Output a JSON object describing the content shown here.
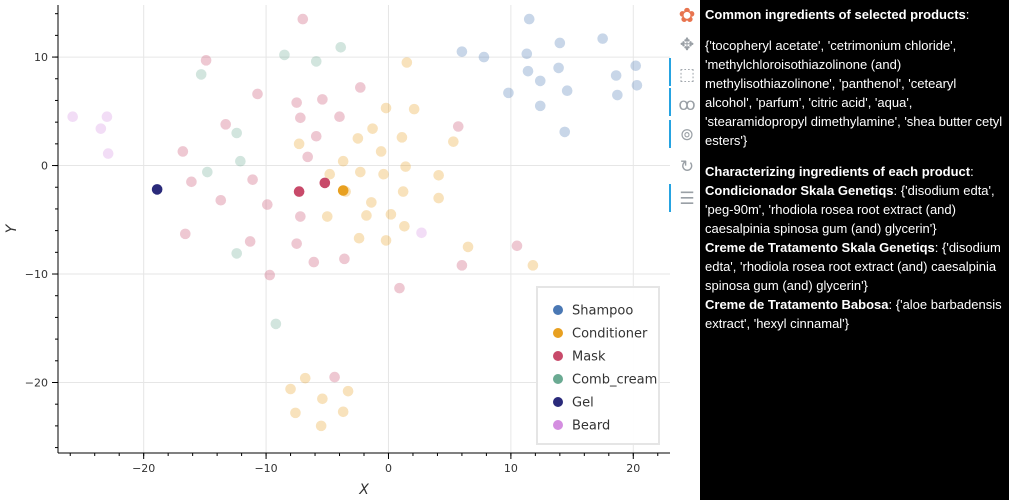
{
  "chart_data": {
    "type": "scatter",
    "title": "",
    "xlabel": "X",
    "ylabel": "Y",
    "xlim": [
      -27,
      23
    ],
    "ylim": [
      -26.5,
      14.8
    ],
    "x_ticks": [
      -20,
      -10,
      0,
      10,
      20
    ],
    "y_ticks": [
      -20,
      -10,
      0,
      10
    ],
    "grid": true,
    "legend_position": "bottom-right",
    "series": [
      {
        "name": "Shampoo",
        "color": "#4a78b4",
        "points": [
          {
            "x": 11.5,
            "y": 13.5
          },
          {
            "x": 17.5,
            "y": 11.7
          },
          {
            "x": 14,
            "y": 11.3
          },
          {
            "x": 6,
            "y": 10.5
          },
          {
            "x": 7.8,
            "y": 10
          },
          {
            "x": 11.3,
            "y": 10.3
          },
          {
            "x": 20.2,
            "y": 9.2
          },
          {
            "x": 11.4,
            "y": 8.7
          },
          {
            "x": 13.9,
            "y": 9
          },
          {
            "x": 18.6,
            "y": 8.3
          },
          {
            "x": 12.4,
            "y": 7.8
          },
          {
            "x": 20.3,
            "y": 7.4
          },
          {
            "x": 9.8,
            "y": 6.7
          },
          {
            "x": 14.6,
            "y": 6.9
          },
          {
            "x": 18.7,
            "y": 6.5
          },
          {
            "x": 12.4,
            "y": 5.5
          },
          {
            "x": 14.4,
            "y": 3.1
          }
        ],
        "highlighted": []
      },
      {
        "name": "Conditioner",
        "color": "#e8a020",
        "points": [
          {
            "x": 1.5,
            "y": 9.5
          },
          {
            "x": -0.2,
            "y": 5.3
          },
          {
            "x": 2.1,
            "y": 5.2
          },
          {
            "x": -1.3,
            "y": 3.4
          },
          {
            "x": 1.1,
            "y": 2.6
          },
          {
            "x": -2.5,
            "y": 2.5
          },
          {
            "x": -7.3,
            "y": 2
          },
          {
            "x": 5.3,
            "y": 2.2
          },
          {
            "x": -0.6,
            "y": 1.3
          },
          {
            "x": -3.7,
            "y": 0.4
          },
          {
            "x": -2.3,
            "y": -0.6
          },
          {
            "x": -4.8,
            "y": -0.8
          },
          {
            "x": 1.4,
            "y": -0.1
          },
          {
            "x": -0.4,
            "y": -0.8
          },
          {
            "x": 4.1,
            "y": -0.9
          },
          {
            "x": -3.5,
            "y": -2.4
          },
          {
            "x": 1.2,
            "y": -2.4
          },
          {
            "x": -1.4,
            "y": -3.4
          },
          {
            "x": 4.1,
            "y": -3
          },
          {
            "x": -5.0,
            "y": -4.7
          },
          {
            "x": -1.8,
            "y": -4.6
          },
          {
            "x": 0.2,
            "y": -4.5
          },
          {
            "x": 1.3,
            "y": -5.6
          },
          {
            "x": -2.4,
            "y": -6.7
          },
          {
            "x": -0.2,
            "y": -6.9
          },
          {
            "x": 6.5,
            "y": -7.5
          },
          {
            "x": 11.8,
            "y": -9.2
          },
          {
            "x": -6.8,
            "y": -19.6
          },
          {
            "x": -8.0,
            "y": -20.6
          },
          {
            "x": -3.3,
            "y": -20.8
          },
          {
            "x": -5.4,
            "y": -21.5
          },
          {
            "x": -7.6,
            "y": -22.8
          },
          {
            "x": -3.7,
            "y": -22.7
          },
          {
            "x": -5.5,
            "y": -24
          },
          {
            "x": -3.7,
            "y": -2.3
          }
        ],
        "highlighted": [
          {
            "x": -3.7,
            "y": -2.3
          }
        ]
      },
      {
        "name": "Mask",
        "color": "#c84a6a",
        "points": [
          {
            "x": -7.0,
            "y": 13.5
          },
          {
            "x": -14.9,
            "y": 9.7
          },
          {
            "x": -2.3,
            "y": 7.2
          },
          {
            "x": -10.7,
            "y": 6.6
          },
          {
            "x": -5.4,
            "y": 6.1
          },
          {
            "x": -7.5,
            "y": 5.8
          },
          {
            "x": -7.2,
            "y": 4.4
          },
          {
            "x": -4.0,
            "y": 4.5
          },
          {
            "x": -13.3,
            "y": 3.8
          },
          {
            "x": 5.7,
            "y": 3.6
          },
          {
            "x": -5.9,
            "y": 2.7
          },
          {
            "x": -16.8,
            "y": 1.3
          },
          {
            "x": -6.6,
            "y": 0.8
          },
          {
            "x": -16.1,
            "y": -1.5
          },
          {
            "x": -11.1,
            "y": -1.3
          },
          {
            "x": -13.7,
            "y": -3.2
          },
          {
            "x": -9.9,
            "y": -3.6
          },
          {
            "x": -7.2,
            "y": -4.7
          },
          {
            "x": -16.6,
            "y": -6.3
          },
          {
            "x": -11.3,
            "y": -7.0
          },
          {
            "x": -7.5,
            "y": -7.2
          },
          {
            "x": -3.6,
            "y": -8.6
          },
          {
            "x": -6.1,
            "y": -8.9
          },
          {
            "x": 10.5,
            "y": -7.4
          },
          {
            "x": 6.0,
            "y": -9.2
          },
          {
            "x": -9.7,
            "y": -10.1
          },
          {
            "x": 0.9,
            "y": -11.3
          },
          {
            "x": -4.4,
            "y": -19.5
          },
          {
            "x": -7.3,
            "y": -2.4
          },
          {
            "x": -5.2,
            "y": -1.6
          }
        ],
        "highlighted": [
          {
            "x": -7.3,
            "y": -2.4
          },
          {
            "x": -5.2,
            "y": -1.6
          }
        ]
      },
      {
        "name": "Comb_cream",
        "color": "#6aaa92",
        "points": [
          {
            "x": -8.5,
            "y": 10.2
          },
          {
            "x": -3.9,
            "y": 10.9
          },
          {
            "x": -5.9,
            "y": 9.6
          },
          {
            "x": -15.3,
            "y": 8.4
          },
          {
            "x": -12.4,
            "y": 3
          },
          {
            "x": -12.1,
            "y": 0.4
          },
          {
            "x": -14.8,
            "y": -0.6
          },
          {
            "x": -12.4,
            "y": -8.1
          },
          {
            "x": -9.2,
            "y": -14.6
          }
        ],
        "highlighted": []
      },
      {
        "name": "Gel",
        "color": "#2a2a7a",
        "points": [
          {
            "x": -18.9,
            "y": -2.2
          }
        ],
        "highlighted": [
          {
            "x": -18.9,
            "y": -2.2
          }
        ]
      },
      {
        "name": "Beard",
        "color": "#d48ee0",
        "points": [
          {
            "x": -25.8,
            "y": 4.5
          },
          {
            "x": -23.0,
            "y": 4.5
          },
          {
            "x": -23.5,
            "y": 3.4
          },
          {
            "x": -22.9,
            "y": 1.1
          },
          {
            "x": 2.7,
            "y": -6.2
          }
        ],
        "highlighted": []
      }
    ]
  },
  "toolbar": {
    "tools": [
      {
        "icon": "bokeh-logo-icon",
        "glyph": "✿"
      },
      {
        "icon": "pan-icon",
        "glyph": "✥"
      },
      {
        "icon": "box-select-icon",
        "glyph": "⬚"
      },
      {
        "icon": "lasso-icon",
        "glyph": "ꝏ"
      },
      {
        "icon": "wheel-zoom-icon",
        "glyph": "⊚"
      },
      {
        "icon": "reset-icon",
        "glyph": "↻"
      },
      {
        "icon": "hover-icon",
        "glyph": "☰"
      }
    ]
  },
  "panel": {
    "common_heading": "Common ingredients of selected products",
    "common_colon": ":",
    "common_list": "{'tocopheryl acetate', 'cetrimonium chloride', 'methylchloroisothiazolinone (and) methylisothiazolinone', 'panthenol', 'cetearyl alcohol', 'parfum', 'citric acid', 'aqua', 'stearamidopropyl dimethylamine', 'shea butter cetyl esters'}",
    "characterizing_heading": "Characterizing ingredients of each product",
    "characterizing_colon": ":",
    "products": [
      {
        "name": "Condicionador Skala Genetiqs",
        "ingredients": ": {'disodium edta', 'peg-90m', 'rhodiola rosea root extract (and) caesalpinia spinosa gum (and) glycerin'}"
      },
      {
        "name": "Creme de Tratamento Skala Genetiqs",
        "ingredients": ": {'disodium edta', 'rhodiola rosea root extract (and) caesalpinia spinosa gum (and) glycerin'}"
      },
      {
        "name": "Creme de Tratamento Babosa",
        "ingredients": ": {'aloe barbadensis extract', 'hexyl cinnamal'}"
      }
    ]
  }
}
